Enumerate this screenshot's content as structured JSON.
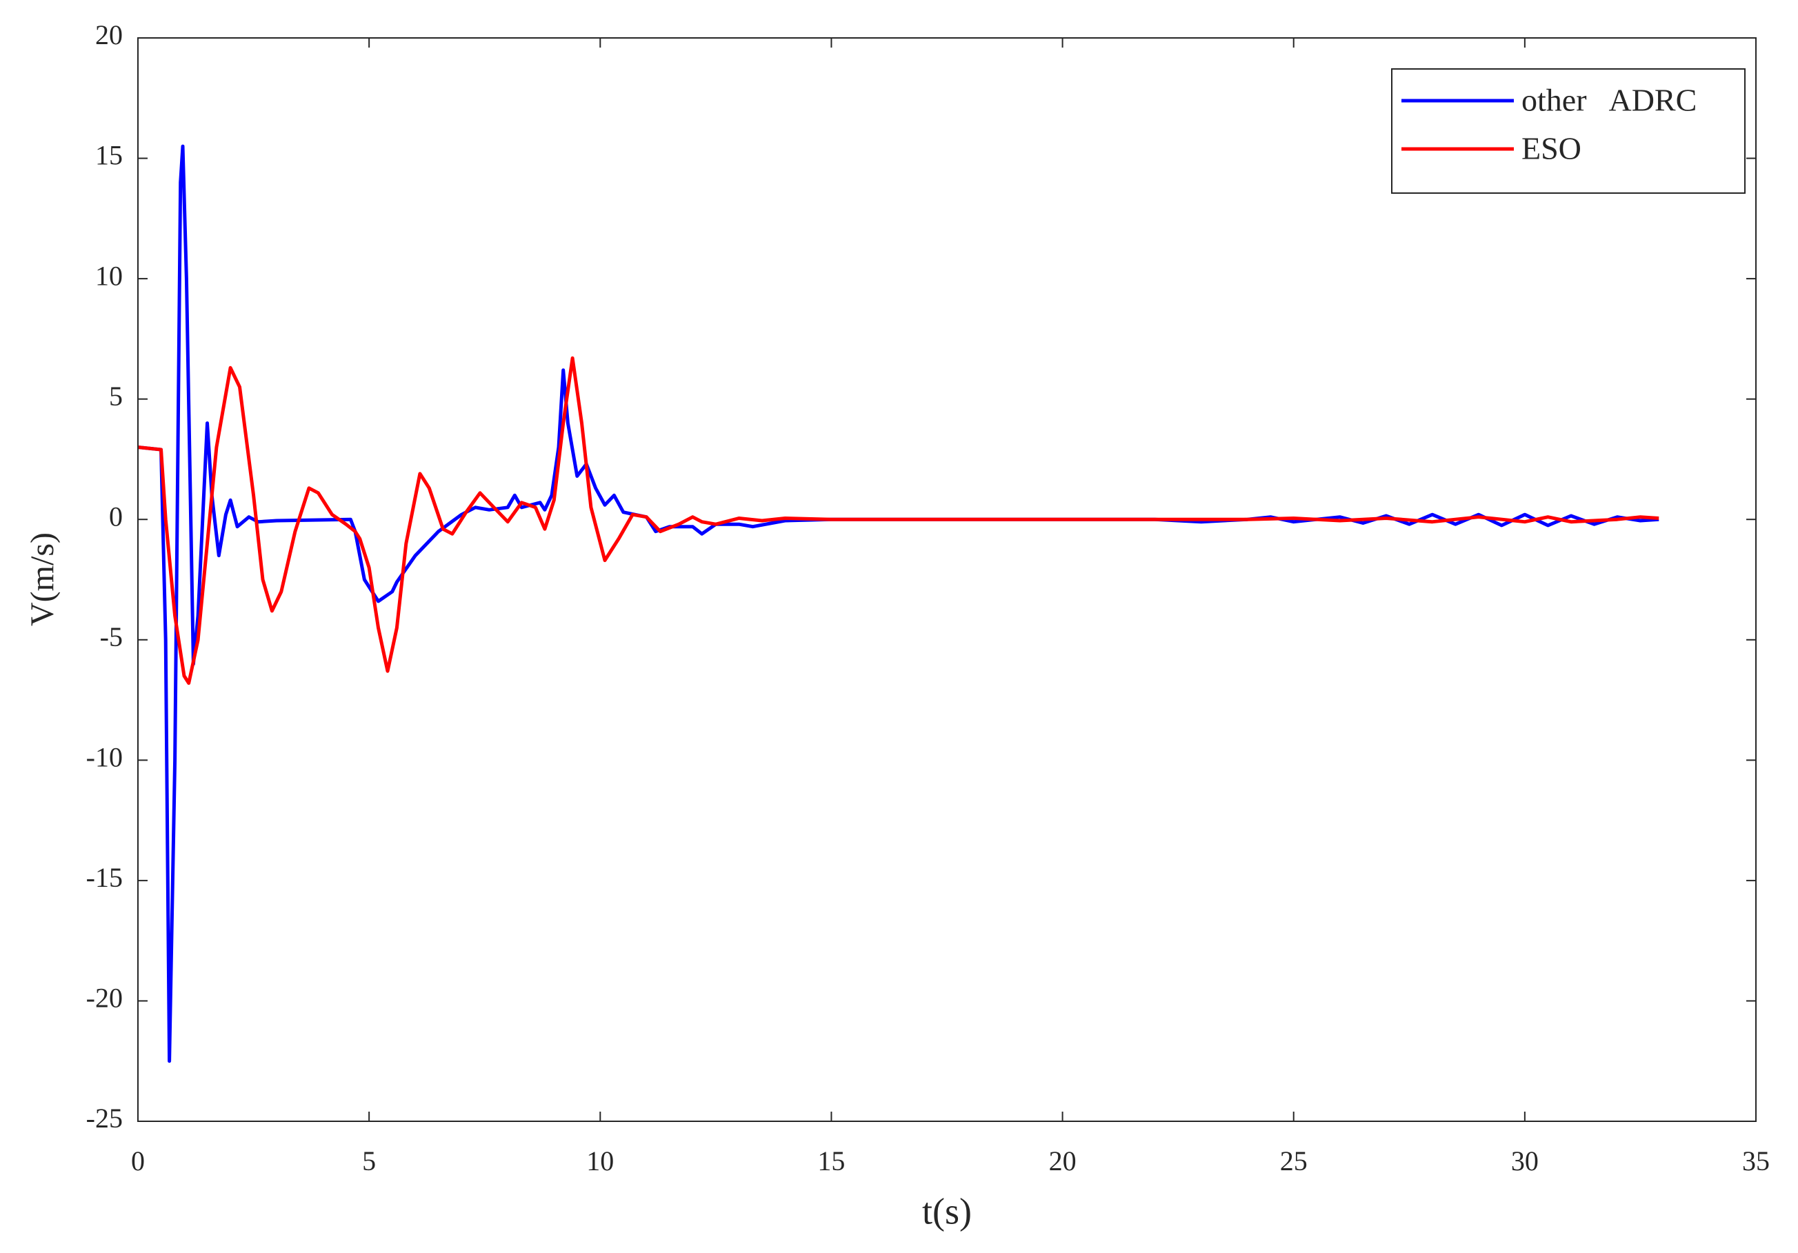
{
  "chart_data": {
    "type": "line",
    "xlabel": "t(s)",
    "ylabel": "V(m/s)",
    "xlim": [
      0,
      35
    ],
    "xticks": [
      0,
      5,
      10,
      15,
      20,
      25,
      30,
      35
    ],
    "ylim": [
      -25,
      20
    ],
    "yticks": [
      -25,
      -20,
      -15,
      -10,
      -5,
      0,
      5,
      10,
      15,
      20
    ],
    "legend": "upper right",
    "series": [
      {
        "name": "other   ADRC",
        "color": "#0000ff",
        "x": [
          0,
          0.5,
          0.6,
          0.68,
          0.8,
          0.92,
          0.97,
          1.05,
          1.2,
          1.3,
          1.5,
          1.6,
          1.75,
          1.9,
          2.0,
          2.15,
          2.4,
          2.6,
          3,
          4.6,
          4.7,
          4.9,
          5.2,
          5.5,
          5.6,
          6,
          6.5,
          7,
          7.3,
          7.6,
          8,
          8.15,
          8.3,
          8.7,
          8.8,
          8.95,
          9.1,
          9.2,
          9.3,
          9.5,
          9.7,
          9.9,
          10.1,
          10.3,
          10.5,
          11,
          11.2,
          11.5,
          12,
          12.2,
          12.5,
          13,
          13.3,
          14,
          15,
          20,
          22,
          23,
          24,
          24.5,
          25,
          26,
          26.5,
          27,
          27.5,
          28,
          28.5,
          29,
          29.5,
          30,
          30.5,
          31,
          31.5,
          32,
          32.5,
          32.9
        ],
        "values": [
          3,
          2.9,
          -5,
          -22.5,
          -10,
          14,
          15.5,
          10,
          -6,
          -4,
          4,
          1,
          -1.5,
          0.2,
          0.8,
          -0.3,
          0.1,
          -0.1,
          -0.05,
          0,
          -0.5,
          -2.5,
          -3.4,
          -3,
          -2.6,
          -1.5,
          -0.5,
          0.2,
          0.5,
          0.4,
          0.5,
          1,
          0.5,
          0.7,
          0.4,
          1,
          3,
          6.2,
          4,
          1.8,
          2.3,
          1.3,
          0.6,
          1,
          0.3,
          0.1,
          -0.5,
          -0.3,
          -0.3,
          -0.6,
          -0.2,
          -0.2,
          -0.3,
          -0.05,
          0,
          0,
          0,
          -0.1,
          0,
          0.1,
          -0.1,
          0.1,
          -0.15,
          0.15,
          -0.2,
          0.2,
          -0.2,
          0.2,
          -0.25,
          0.2,
          -0.25,
          0.15,
          -0.2,
          0.1,
          -0.05,
          0
        ]
      },
      {
        "name": "ESO",
        "color": "#ff0000",
        "x": [
          0,
          0.5,
          0.6,
          0.8,
          1.0,
          1.1,
          1.3,
          1.5,
          1.7,
          2.0,
          2.2,
          2.5,
          2.7,
          2.9,
          3.1,
          3.4,
          3.7,
          3.9,
          4.2,
          4.5,
          4.7,
          4.8,
          5.0,
          5.2,
          5.4,
          5.6,
          5.8,
          6.1,
          6.3,
          6.6,
          6.8,
          7.1,
          7.4,
          7.7,
          8,
          8.3,
          8.6,
          8.8,
          9.0,
          9.2,
          9.4,
          9.6,
          9.8,
          10.1,
          10.4,
          10.7,
          11,
          11.3,
          11.7,
          12.0,
          12.2,
          12.5,
          13,
          13.5,
          14,
          15,
          20,
          24,
          25,
          26,
          27,
          28,
          29,
          30,
          30.5,
          31,
          32,
          32.5,
          32.9
        ],
        "values": [
          3,
          2.9,
          0,
          -4,
          -6.5,
          -6.8,
          -5,
          -1,
          3,
          6.3,
          5.5,
          1,
          -2.5,
          -3.8,
          -3,
          -0.5,
          1.3,
          1.1,
          0.2,
          -0.2,
          -0.5,
          -0.8,
          -2,
          -4.5,
          -6.3,
          -4.5,
          -1,
          1.9,
          1.3,
          -0.4,
          -0.6,
          0.3,
          1.1,
          0.5,
          -0.1,
          0.7,
          0.5,
          -0.4,
          0.8,
          4,
          6.7,
          4,
          0.5,
          -1.7,
          -0.8,
          0.2,
          0.1,
          -0.5,
          -0.2,
          0.1,
          -0.1,
          -0.2,
          0.05,
          -0.05,
          0.05,
          0,
          0,
          0,
          0.05,
          -0.05,
          0.05,
          -0.1,
          0.1,
          -0.1,
          0.1,
          -0.1,
          0,
          0.1,
          0.05
        ]
      }
    ]
  }
}
